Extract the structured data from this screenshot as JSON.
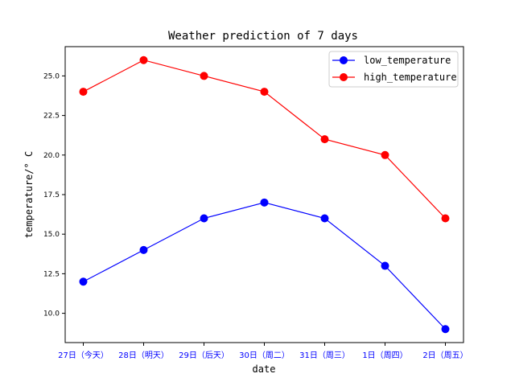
{
  "chart_data": {
    "type": "line",
    "title": "Weather prediction of 7 days",
    "xlabel": "date",
    "ylabel": "temperature/° C",
    "categories": [
      "27日（今天）",
      "28日（明天）",
      "29日（后天）",
      "30日（周二）",
      "31日（周三）",
      "1日（周四）",
      "2日（周五）"
    ],
    "series": [
      {
        "name": "low_temperature",
        "color": "#0000ff",
        "values": [
          12,
          14,
          16,
          17,
          16,
          13,
          9
        ]
      },
      {
        "name": "high_temperature",
        "color": "#ff0000",
        "values": [
          24,
          26,
          25,
          24,
          21,
          20,
          16
        ]
      }
    ],
    "ylim": [
      8.15,
      26.85
    ],
    "yticks": [
      10.0,
      12.5,
      15.0,
      17.5,
      20.0,
      22.5,
      25.0
    ],
    "ytick_labels": [
      "10.0",
      "12.5",
      "15.0",
      "17.5",
      "20.0",
      "22.5",
      "25.0"
    ],
    "xtick_color": "#0000ff",
    "grid": false,
    "legend_position": "top-right"
  }
}
